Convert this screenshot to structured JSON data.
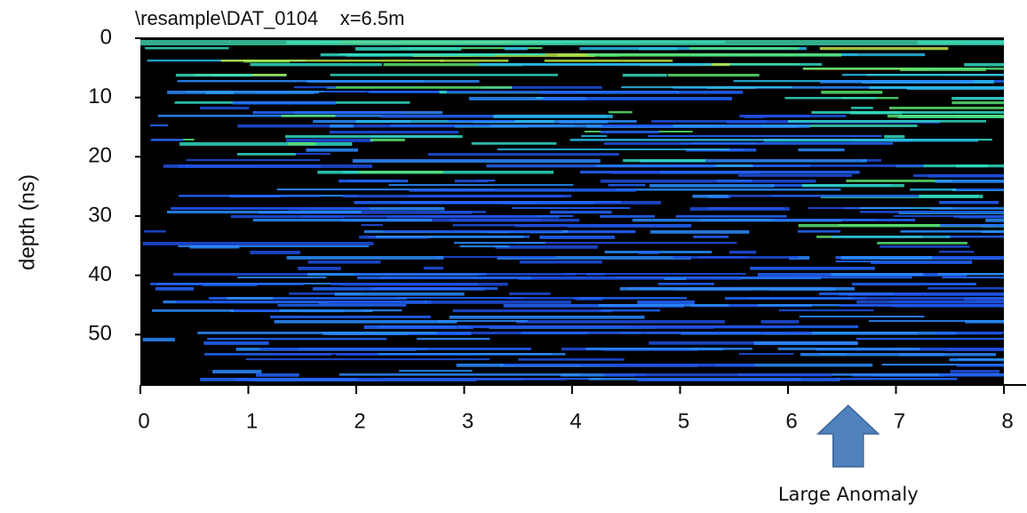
{
  "chart_data": {
    "type": "radargram",
    "title": "\\resample\\DAT_0104    x=6.5m",
    "ylabel": "depth (ns)",
    "xlim": [
      0,
      8
    ],
    "xticks": [
      0,
      1,
      2,
      3,
      4,
      5,
      6,
      7,
      8
    ],
    "ylim": [
      0,
      58.5
    ],
    "yticks": [
      0,
      10,
      20,
      30,
      40,
      50
    ],
    "y_inverted": true,
    "annotations": [
      {
        "text": "Large Anomaly",
        "x": 6.5
      }
    ]
  }
}
